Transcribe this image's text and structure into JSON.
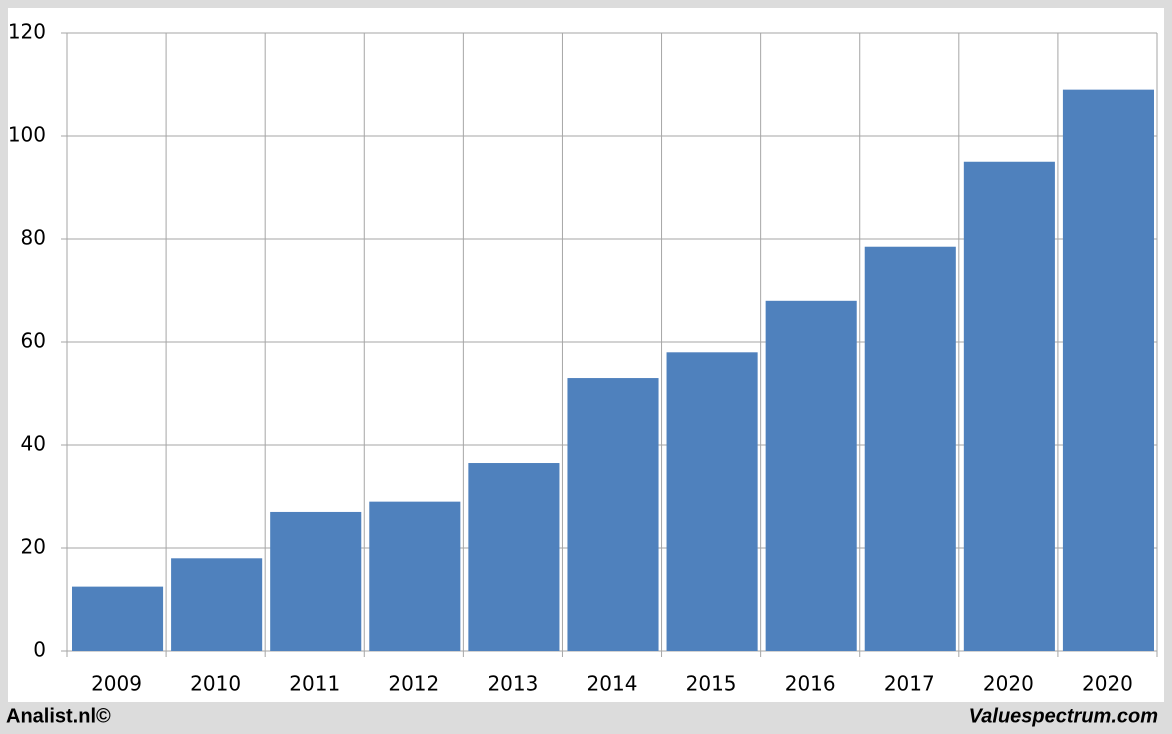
{
  "chart_data": {
    "type": "bar",
    "categories": [
      "2009",
      "2010",
      "2011",
      "2012",
      "2013",
      "2014",
      "2015",
      "2016",
      "2017",
      "2020",
      "2020"
    ],
    "values": [
      12.5,
      18,
      27,
      29,
      36.5,
      53,
      58,
      68,
      78.5,
      95,
      109
    ],
    "color": "#4f81bd",
    "ylim": [
      0,
      120
    ],
    "yticks": [
      0,
      20,
      40,
      60,
      80,
      100,
      120
    ],
    "grid": true,
    "footer_left": "Analist.nl©",
    "footer_right": "Valuespectrum.com"
  }
}
